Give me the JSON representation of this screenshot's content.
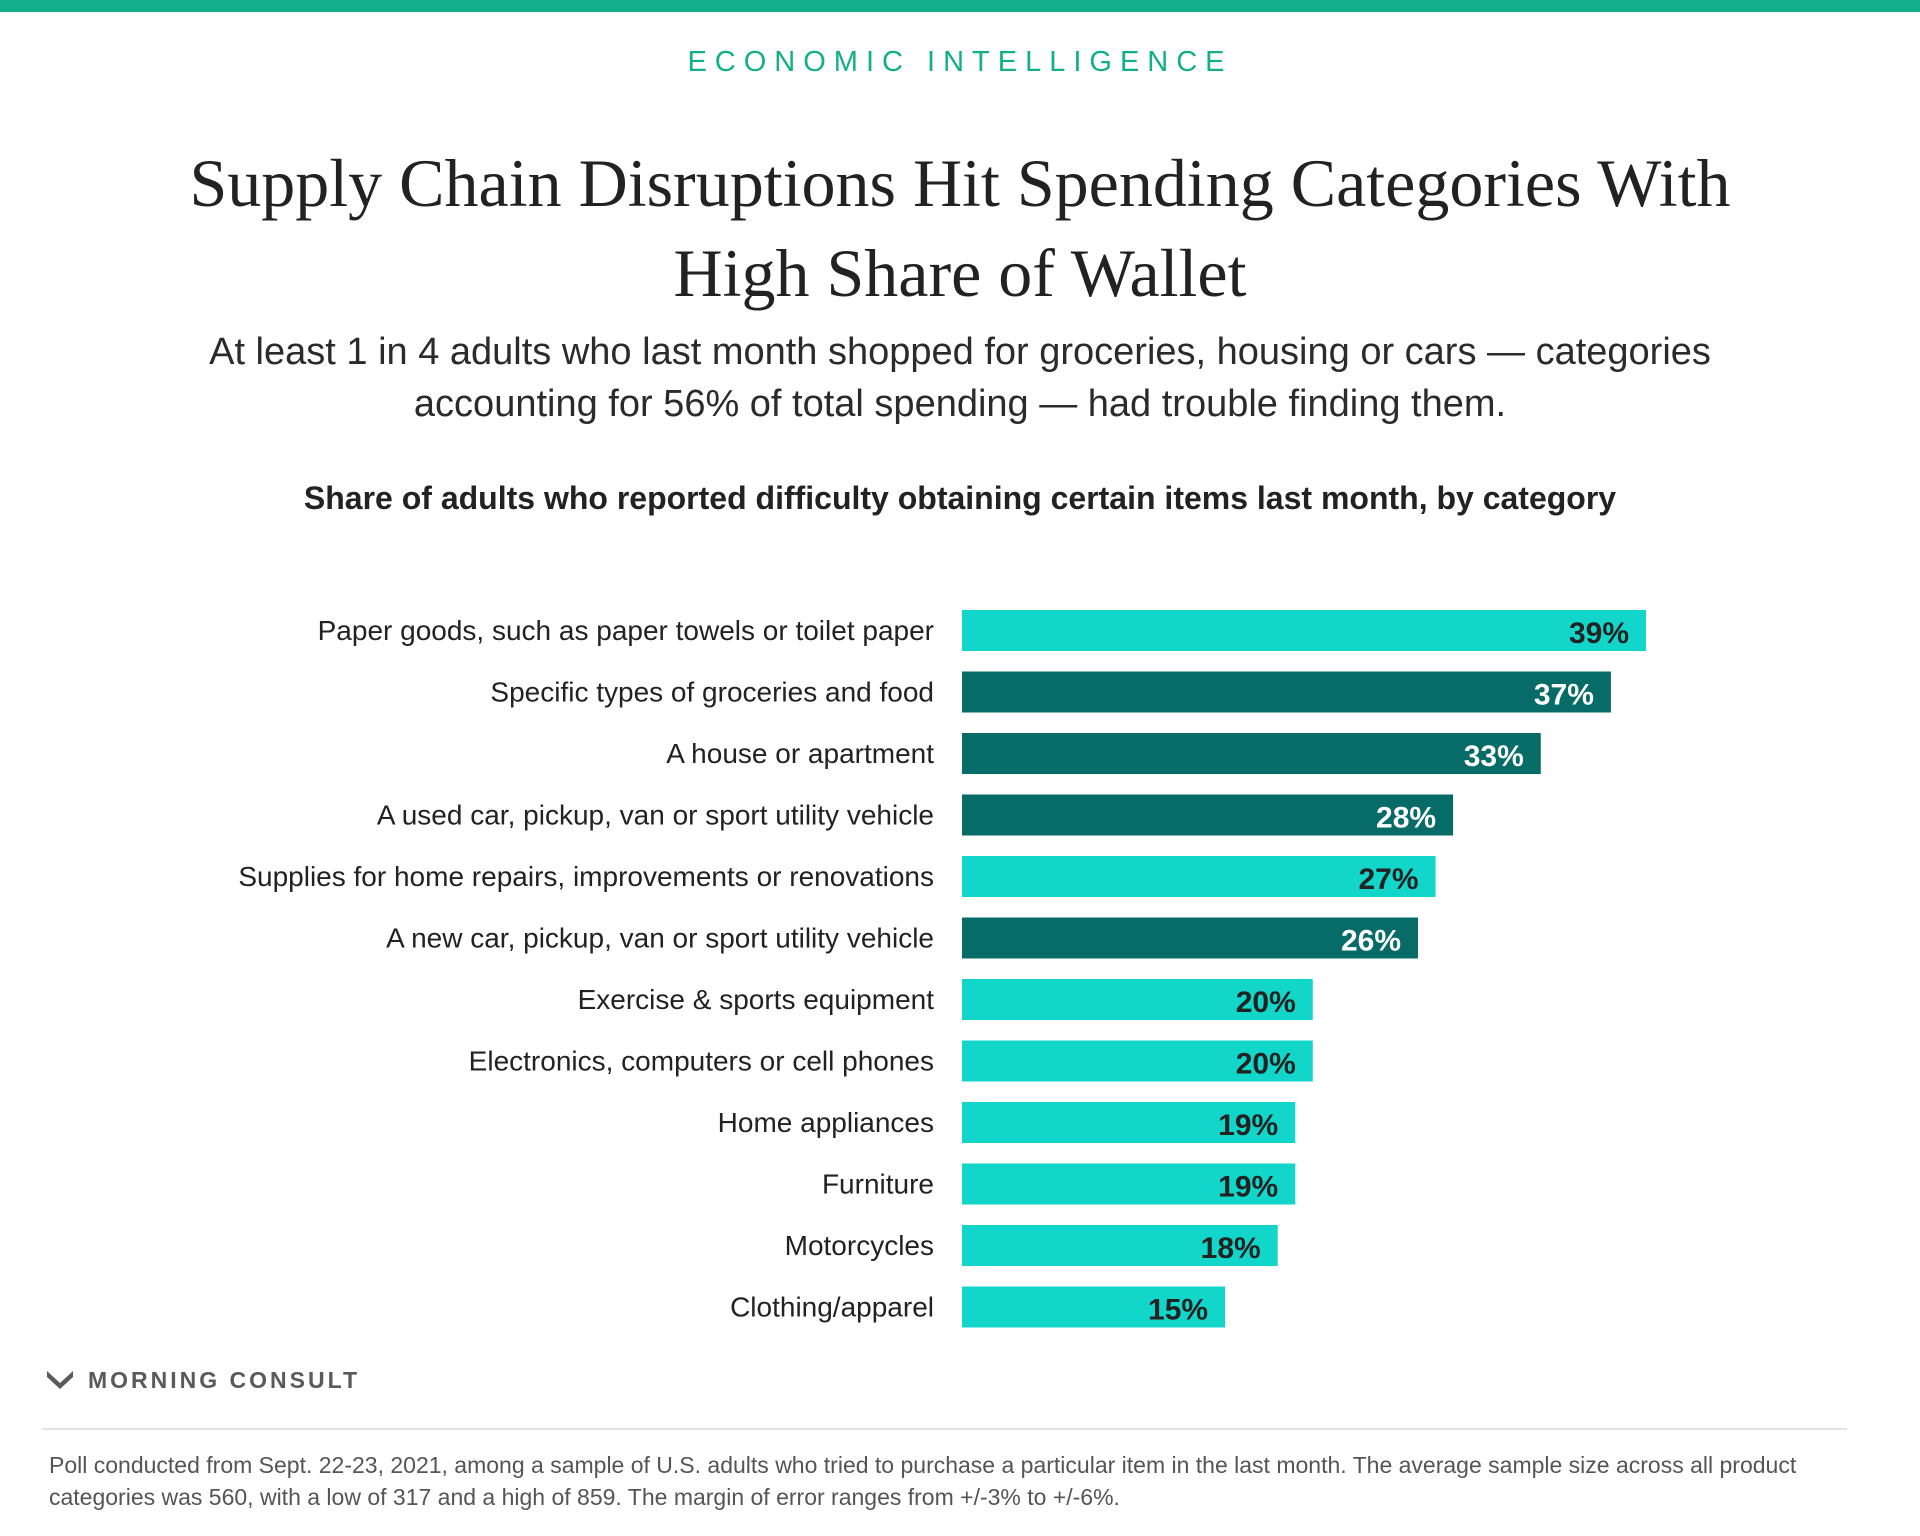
{
  "header": {
    "kicker": "ECONOMIC INTELLIGENCE",
    "title": "Supply Chain Disruptions Hit Spending Categories With High Share of Wallet",
    "subtitle": "At least 1 in 4 adults who last month shopped for groceries, housing or cars — categories accounting for 56% of total spending — had trouble finding them."
  },
  "chart_data": {
    "type": "bar",
    "orientation": "horizontal",
    "title": "Share of adults who reported difficulty obtaining certain items last month, by category",
    "categories": [
      "Paper goods, such as paper towels or toilet paper",
      "Specific types of groceries and food",
      "A house or apartment",
      "A used car, pickup, van or sport utility vehicle",
      "Supplies for home repairs, improvements or renovations",
      "A new car, pickup, van or sport utility vehicle",
      "Exercise & sports equipment",
      "Electronics, computers or cell phones",
      "Home appliances",
      "Furniture",
      "Motorcycles",
      "Clothing/apparel"
    ],
    "values": [
      39,
      37,
      33,
      28,
      27,
      26,
      20,
      20,
      19,
      19,
      18,
      15
    ],
    "value_labels": [
      "39%",
      "37%",
      "33%",
      "28%",
      "27%",
      "26%",
      "20%",
      "20%",
      "19%",
      "19%",
      "18%",
      "15%"
    ],
    "highlighted": [
      false,
      true,
      true,
      true,
      false,
      true,
      false,
      false,
      false,
      false,
      false,
      false
    ],
    "unit": "%",
    "xlim": [
      0,
      39
    ],
    "grid": false,
    "legend": "none",
    "colors": {
      "default": "#12d6c9",
      "highlight": "#076b67",
      "label_on_default": "#222222",
      "label_on_highlight": "#ffffff"
    }
  },
  "footer": {
    "brand": "MORNING CONSULT",
    "brand_icon": "morning-consult-logo-icon",
    "note": "Poll conducted from Sept. 22-23, 2021, among a sample of U.S. adults who tried to purchase a particular item in the last month. The average sample size across all product categories was 560, with a low of 317 and a high of 859. The margin of error ranges from +/-3% to +/-6%."
  },
  "theme": {
    "accent": "#11b08a"
  }
}
